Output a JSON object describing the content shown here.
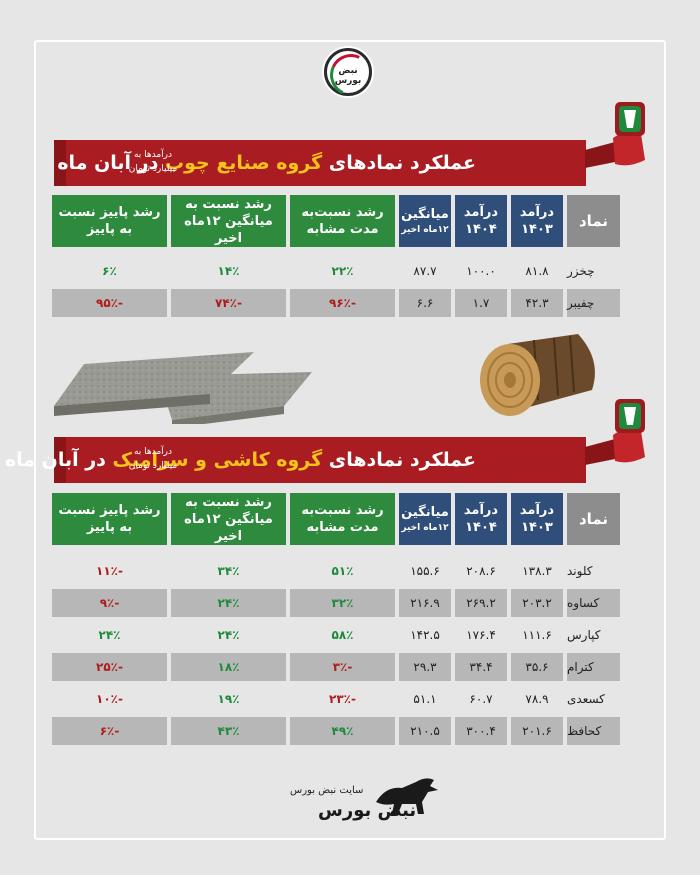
{
  "brand": {
    "logo_text": "نبض بورس",
    "footer_site": "سایت نبض بورس",
    "footer_brand": "نبض بورس"
  },
  "sections": [
    {
      "title_pre": "عملکرد نمادهای ",
      "title_hl": "گروه صنایع چوب",
      "title_post": " در آبان ماه",
      "note": "درآمدها به میلیارد تومان",
      "headers": {
        "symbol": "نماد",
        "rev1403": "درآمد ۱۴۰۳",
        "rev1404": "درآمد ۱۴۰۴",
        "avg_main": "میانگین",
        "avg_sub": "۱۲ماه اخیر",
        "g_same": "رشد نسبت‌به مدت مشابه",
        "g_avg": "رشد نسبت به میانگین ۱۲ماه اخیر",
        "g_fall": "رشد پاییز نسبت به پاییز"
      },
      "rows": [
        {
          "symbol": "چخزر",
          "rev1403": "۸۱.۸",
          "rev1404": "۱۰۰.۰",
          "avg": "۸۷.۷",
          "g_same": "۲۲٪",
          "g_avg": "۱۴٪",
          "g_fall": "۶٪"
        },
        {
          "symbol": "چفیبر",
          "rev1403": "۴۲.۳",
          "rev1404": "۱.۷",
          "avg": "۶.۶",
          "g_same": "-۹۶٪",
          "g_avg": "-۷۴٪",
          "g_fall": "-۹۵٪"
        }
      ]
    },
    {
      "title_pre": "عملکرد نمادهای ",
      "title_hl": "گروه کاشی و سرامیک",
      "title_post": " در آبان ماه",
      "note": "درآمدها به میلیارد تومان",
      "headers": {
        "symbol": "نماد",
        "rev1403": "درآمد ۱۴۰۳",
        "rev1404": "درآمد ۱۴۰۴",
        "avg_main": "میانگین",
        "avg_sub": "۱۲ماه اخیر",
        "g_same": "رشد نسبت‌به مدت مشابه",
        "g_avg": "رشد نسبت به میانگین ۱۲ماه اخیر",
        "g_fall": "رشد پاییز نسبت به پاییز"
      },
      "rows": [
        {
          "symbol": "کلوند",
          "rev1403": "۱۳۸.۳",
          "rev1404": "۲۰۸.۶",
          "avg": "۱۵۵.۶",
          "g_same": "۵۱٪",
          "g_avg": "۳۴٪",
          "g_fall": "-۱۱٪"
        },
        {
          "symbol": "کساوه",
          "rev1403": "۲۰۳.۲",
          "rev1404": "۲۶۹.۲",
          "avg": "۲۱۶.۹",
          "g_same": "۳۲٪",
          "g_avg": "۲۴٪",
          "g_fall": "-۹٪"
        },
        {
          "symbol": "کپارس",
          "rev1403": "۱۱۱.۶",
          "rev1404": "۱۷۶.۴",
          "avg": "۱۴۲.۵",
          "g_same": "۵۸٪",
          "g_avg": "۲۴٪",
          "g_fall": "۲۴٪"
        },
        {
          "symbol": "کترام",
          "rev1403": "۳۵.۶",
          "rev1404": "۳۴.۴",
          "avg": "۲۹.۳",
          "g_same": "-۳٪",
          "g_avg": "۱۸٪",
          "g_fall": "-۲۵٪"
        },
        {
          "symbol": "کسعدی",
          "rev1403": "۷۸.۹",
          "rev1404": "۶۰.۷",
          "avg": "۵۱.۱",
          "g_same": "-۲۳٪",
          "g_avg": "۱۹٪",
          "g_fall": "-۱۰٪"
        },
        {
          "symbol": "کحافظ",
          "rev1403": "۲۰۱.۶",
          "rev1404": "۳۰۰.۴",
          "avg": "۲۱۰.۵",
          "g_same": "۴۹٪",
          "g_avg": "۴۳٪",
          "g_fall": "-۶٪"
        }
      ]
    }
  ],
  "colors": {
    "banner": "#a91d22",
    "highlight": "#f6c21b",
    "growth_header": "#2e8b3d",
    "revenue_header": "#2f4f7a",
    "positive": "#1f8a3b",
    "negative": "#b01c1c"
  }
}
